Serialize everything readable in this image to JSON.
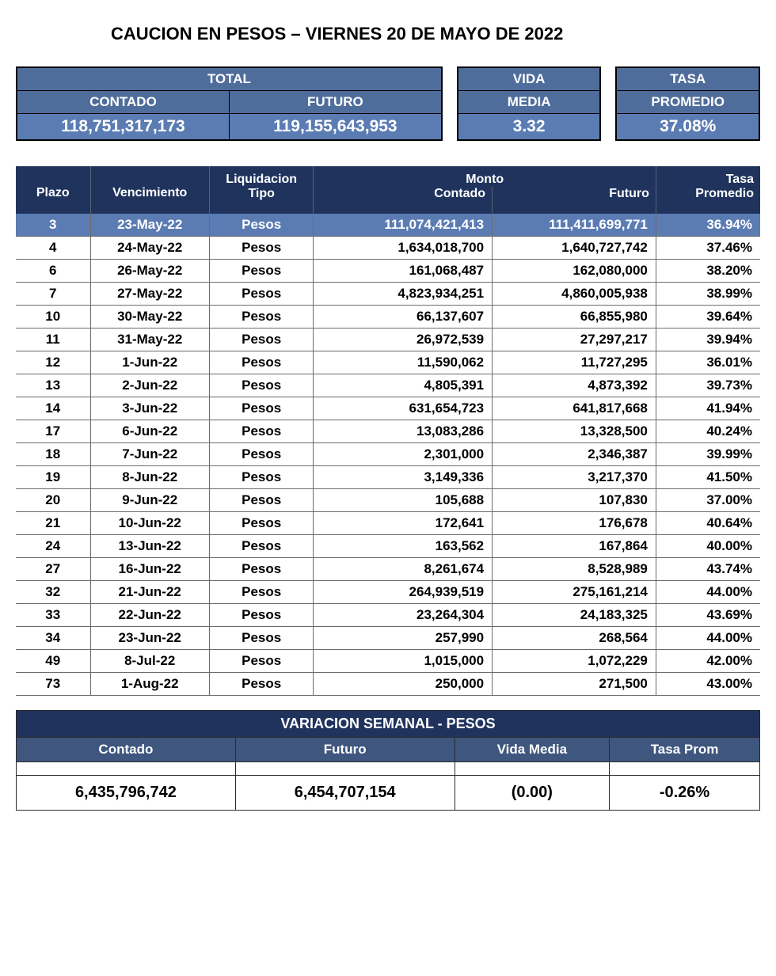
{
  "colors": {
    "header_dark": "#1f335d",
    "header_mid": "#3f567e",
    "header_light": "#4f6d9b",
    "value_blue": "#5b7cb3",
    "row_border": "#6b6b6b",
    "text_black": "#000000",
    "text_white": "#ffffff",
    "page_bg": "#ffffff"
  },
  "typography": {
    "title_fontsize": 22,
    "header_fontsize": 16,
    "cell_fontsize": 17,
    "summary_value_fontsize": 21
  },
  "title": "CAUCION EN PESOS – VIERNES  20 DE MAYO DE 2022",
  "summary": {
    "labels": {
      "total": "TOTAL",
      "contado": "CONTADO",
      "futuro": "FUTURO",
      "vida": "VIDA",
      "media": "MEDIA",
      "tasa": "TASA",
      "promedio": "PROMEDIO"
    },
    "values": {
      "contado": "118,751,317,173",
      "futuro": "119,155,643,953",
      "vida_media": "3.32",
      "tasa_promedio": "37.08%"
    }
  },
  "table": {
    "headers": {
      "plazo": "Plazo",
      "venc": "Vencimiento",
      "liq": "Liquidacion",
      "tipo": "Tipo",
      "monto": "Monto",
      "contado": "Contado",
      "futuro": "Futuro",
      "tasa": "Tasa",
      "prom": "Promedio"
    },
    "highlight_row_index": 0,
    "rows": [
      {
        "plazo": "3",
        "venc": "23-May-22",
        "tipo": "Pesos",
        "contado": "111,074,421,413",
        "futuro": "111,411,699,771",
        "tasa": "36.94%"
      },
      {
        "plazo": "4",
        "venc": "24-May-22",
        "tipo": "Pesos",
        "contado": "1,634,018,700",
        "futuro": "1,640,727,742",
        "tasa": "37.46%"
      },
      {
        "plazo": "6",
        "venc": "26-May-22",
        "tipo": "Pesos",
        "contado": "161,068,487",
        "futuro": "162,080,000",
        "tasa": "38.20%"
      },
      {
        "plazo": "7",
        "venc": "27-May-22",
        "tipo": "Pesos",
        "contado": "4,823,934,251",
        "futuro": "4,860,005,938",
        "tasa": "38.99%"
      },
      {
        "plazo": "10",
        "venc": "30-May-22",
        "tipo": "Pesos",
        "contado": "66,137,607",
        "futuro": "66,855,980",
        "tasa": "39.64%"
      },
      {
        "plazo": "11",
        "venc": "31-May-22",
        "tipo": "Pesos",
        "contado": "26,972,539",
        "futuro": "27,297,217",
        "tasa": "39.94%"
      },
      {
        "plazo": "12",
        "venc": "1-Jun-22",
        "tipo": "Pesos",
        "contado": "11,590,062",
        "futuro": "11,727,295",
        "tasa": "36.01%"
      },
      {
        "plazo": "13",
        "venc": "2-Jun-22",
        "tipo": "Pesos",
        "contado": "4,805,391",
        "futuro": "4,873,392",
        "tasa": "39.73%"
      },
      {
        "plazo": "14",
        "venc": "3-Jun-22",
        "tipo": "Pesos",
        "contado": "631,654,723",
        "futuro": "641,817,668",
        "tasa": "41.94%"
      },
      {
        "plazo": "17",
        "venc": "6-Jun-22",
        "tipo": "Pesos",
        "contado": "13,083,286",
        "futuro": "13,328,500",
        "tasa": "40.24%"
      },
      {
        "plazo": "18",
        "venc": "7-Jun-22",
        "tipo": "Pesos",
        "contado": "2,301,000",
        "futuro": "2,346,387",
        "tasa": "39.99%"
      },
      {
        "plazo": "19",
        "venc": "8-Jun-22",
        "tipo": "Pesos",
        "contado": "3,149,336",
        "futuro": "3,217,370",
        "tasa": "41.50%"
      },
      {
        "plazo": "20",
        "venc": "9-Jun-22",
        "tipo": "Pesos",
        "contado": "105,688",
        "futuro": "107,830",
        "tasa": "37.00%"
      },
      {
        "plazo": "21",
        "venc": "10-Jun-22",
        "tipo": "Pesos",
        "contado": "172,641",
        "futuro": "176,678",
        "tasa": "40.64%"
      },
      {
        "plazo": "24",
        "venc": "13-Jun-22",
        "tipo": "Pesos",
        "contado": "163,562",
        "futuro": "167,864",
        "tasa": "40.00%"
      },
      {
        "plazo": "27",
        "venc": "16-Jun-22",
        "tipo": "Pesos",
        "contado": "8,261,674",
        "futuro": "8,528,989",
        "tasa": "43.74%"
      },
      {
        "plazo": "32",
        "venc": "21-Jun-22",
        "tipo": "Pesos",
        "contado": "264,939,519",
        "futuro": "275,161,214",
        "tasa": "44.00%"
      },
      {
        "plazo": "33",
        "venc": "22-Jun-22",
        "tipo": "Pesos",
        "contado": "23,264,304",
        "futuro": "24,183,325",
        "tasa": "43.69%"
      },
      {
        "plazo": "34",
        "venc": "23-Jun-22",
        "tipo": "Pesos",
        "contado": "257,990",
        "futuro": "268,564",
        "tasa": "44.00%"
      },
      {
        "plazo": "49",
        "venc": "8-Jul-22",
        "tipo": "Pesos",
        "contado": "1,015,000",
        "futuro": "1,072,229",
        "tasa": "42.00%"
      },
      {
        "plazo": "73",
        "venc": "1-Aug-22",
        "tipo": "Pesos",
        "contado": "250,000",
        "futuro": "271,500",
        "tasa": "43.00%"
      }
    ]
  },
  "variation": {
    "title": "VARIACION SEMANAL - PESOS",
    "headers": {
      "contado": "Contado",
      "futuro": "Futuro",
      "vida": "Vida Media",
      "tasa": "Tasa Prom"
    },
    "values": {
      "contado": "6,435,796,742",
      "futuro": "6,454,707,154",
      "vida": "(0.00)",
      "tasa": "-0.26%"
    }
  }
}
